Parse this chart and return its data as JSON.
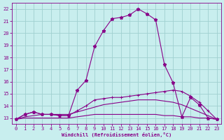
{
  "xlabel": "Windchill (Refroidissement éolien,°C)",
  "bg_color": "#c8eeee",
  "grid_color": "#a0d0d0",
  "line_color": "#880088",
  "x": [
    0,
    1,
    2,
    3,
    4,
    5,
    6,
    7,
    8,
    9,
    10,
    11,
    12,
    13,
    14,
    15,
    16,
    17,
    18,
    19,
    20,
    21,
    22,
    23
  ],
  "ylim": [
    12.5,
    22.5
  ],
  "xlim": [
    -0.5,
    23.5
  ],
  "yticks": [
    13,
    14,
    15,
    16,
    17,
    18,
    19,
    20,
    21,
    22
  ],
  "xticks": [
    0,
    1,
    2,
    3,
    4,
    5,
    6,
    7,
    8,
    9,
    10,
    11,
    12,
    13,
    14,
    15,
    16,
    17,
    18,
    19,
    20,
    21,
    22,
    23
  ],
  "line_main": [
    12.9,
    13.3,
    13.5,
    13.3,
    13.3,
    13.2,
    13.2,
    15.3,
    16.1,
    18.9,
    20.2,
    21.2,
    21.3,
    21.5,
    22.0,
    21.6,
    21.1,
    17.4,
    15.9,
    13.1,
    14.7,
    14.1,
    13.0,
    12.9
  ],
  "line_smooth": [
    12.9,
    13.3,
    13.5,
    13.3,
    13.3,
    13.2,
    13.2,
    13.6,
    14.0,
    14.5,
    14.6,
    14.7,
    14.7,
    14.8,
    14.9,
    15.0,
    15.1,
    15.2,
    15.3,
    15.2,
    14.8,
    14.3,
    13.6,
    12.9
  ],
  "line_diag": [
    12.9,
    13.1,
    13.2,
    13.3,
    13.3,
    13.3,
    13.3,
    13.5,
    13.7,
    13.9,
    14.1,
    14.2,
    14.3,
    14.4,
    14.5,
    14.5,
    14.5,
    14.4,
    14.3,
    14.1,
    13.8,
    13.5,
    13.2,
    12.9
  ],
  "line_flat": [
    12.9,
    13.0,
    13.0,
    13.0,
    13.0,
    13.0,
    13.0,
    13.1,
    13.2,
    13.3,
    13.3,
    13.3,
    13.3,
    13.3,
    13.3,
    13.3,
    13.3,
    13.2,
    13.2,
    13.1,
    13.1,
    13.0,
    13.0,
    12.9
  ]
}
